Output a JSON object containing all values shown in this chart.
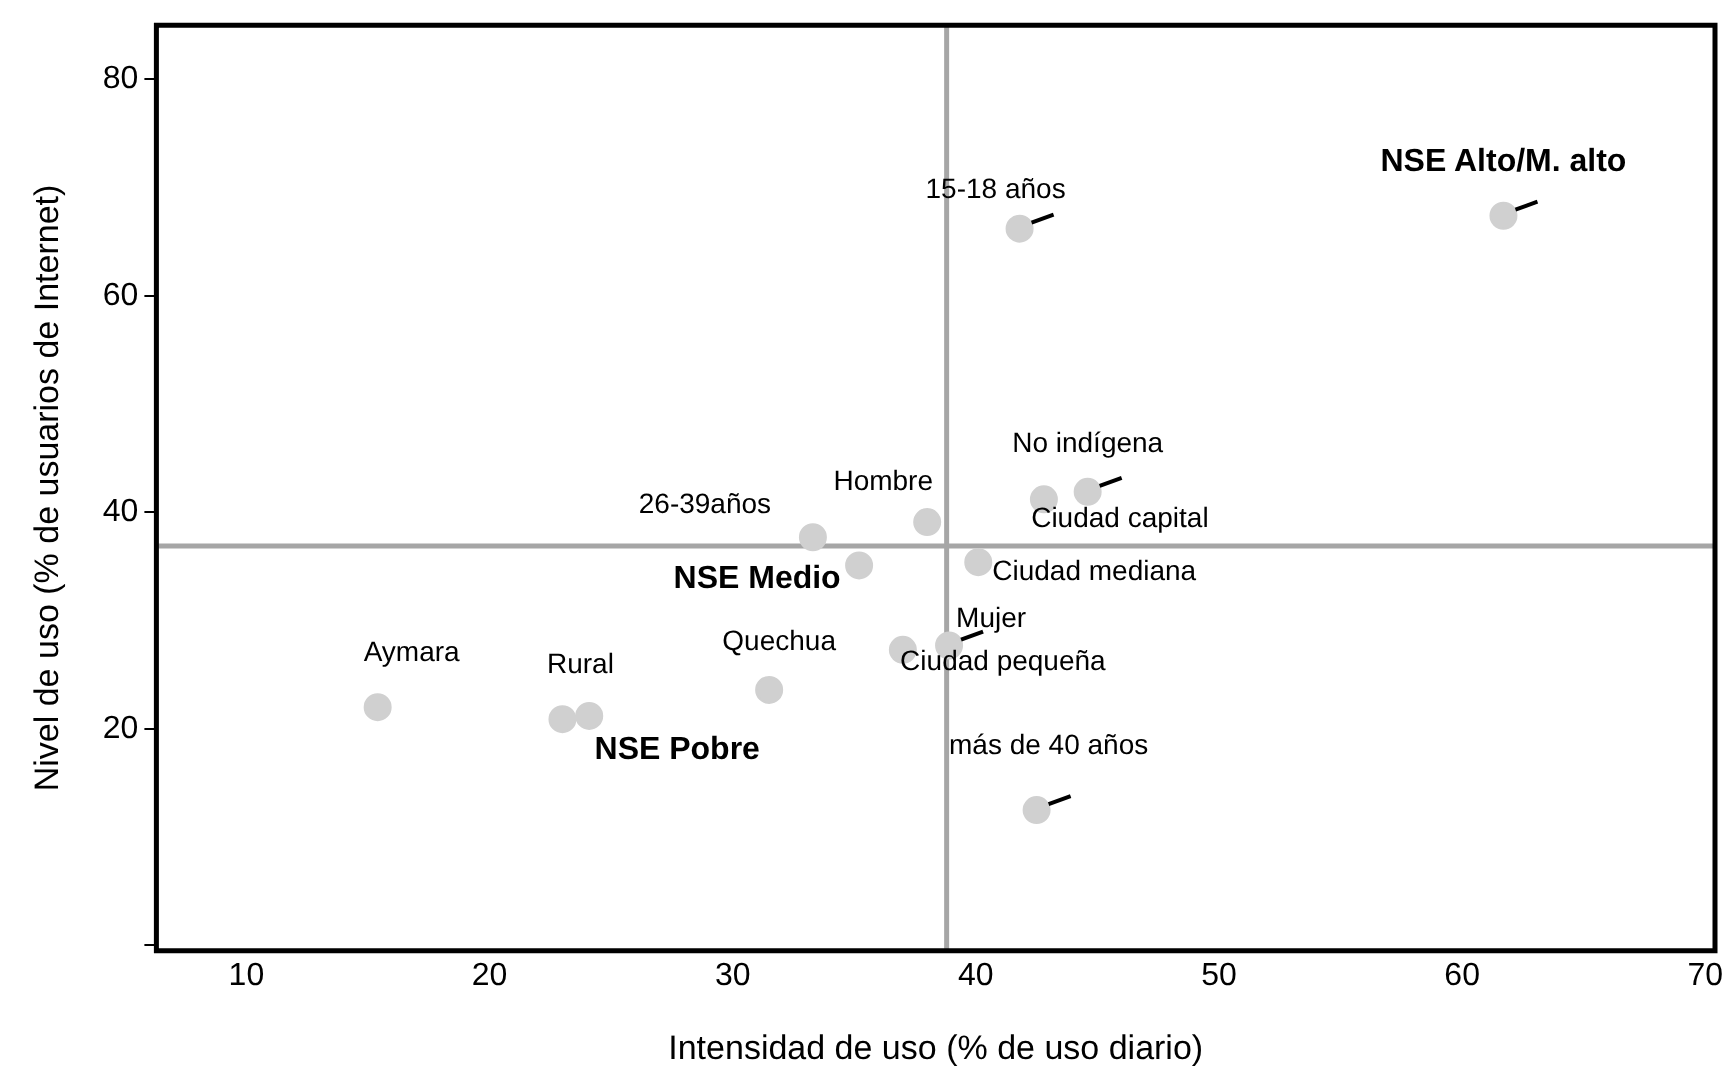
{
  "chart_data": {
    "type": "scatter",
    "xlabel": "Intensidad de uso (% de uso diario)",
    "ylabel": "Nivel de uso (% de usuarios de Internet)",
    "x": [
      15.4,
      23.0,
      24.1,
      31.5,
      33.3,
      35.2,
      38.0,
      37.0,
      38.9,
      40.1,
      42.8,
      44.6,
      42.5,
      41.8,
      61.7
    ],
    "series": [
      {
        "color": "#d0d0d0",
        "values": [
          22.0,
          20.9,
          21.2,
          23.6,
          37.7,
          35.1,
          39.1,
          27.3,
          27.7,
          35.4,
          41.2,
          41.9,
          12.5,
          66.2,
          67.4
        ]
      }
    ],
    "xlim": [
      6.3,
      70.4
    ],
    "xticks": [
      10,
      20,
      30,
      40,
      50,
      60,
      70
    ],
    "ylim": [
      -0.5,
      85
    ],
    "yticks": [
      {
        "value": 0,
        "label": null
      },
      20,
      40,
      60,
      80
    ],
    "ref_lines": [
      {
        "axis": "x",
        "value": 38.8,
        "color": "#a6a6a6"
      },
      {
        "axis": "y",
        "value": 36.9,
        "color": "#a6a6a6"
      }
    ],
    "annotations": [
      {
        "text": "Aymara",
        "x": 15.4,
        "y": 22.0
      },
      {
        "text": "Rural",
        "x": 23.0,
        "y": 20.9
      },
      {
        "text": "NSE Pobre",
        "x": 24.1,
        "y": 21.2
      },
      {
        "text": "Quechua",
        "x": 31.5,
        "y": 23.6
      },
      {
        "text": "26-39años",
        "x": 33.3,
        "y": 37.7
      },
      {
        "text": "NSE Medio",
        "x": 35.2,
        "y": 35.1
      },
      {
        "text": "Hombre",
        "x": 38.0,
        "y": 39.1
      },
      {
        "text": "Ciudad pequeña",
        "x": 37.0,
        "y": 27.3
      },
      {
        "text": "Mujer",
        "x": 38.9,
        "y": 27.7
      },
      {
        "text": "Ciudad mediana",
        "x": 40.1,
        "y": 35.4
      },
      {
        "text": "Ciudad capital",
        "x": 42.8,
        "y": 41.2
      },
      {
        "text": "No indígena",
        "x": 44.6,
        "y": 41.9
      },
      {
        "text": "más de 40 años",
        "x": 42.5,
        "y": 12.5
      },
      {
        "text": "15-18 años",
        "x": 41.8,
        "y": 66.2
      },
      {
        "text": "NSE Alto/M. alto",
        "x": 61.7,
        "y": 67.4
      }
    ],
    "marker": "circle",
    "grid": false,
    "legend": false
  }
}
